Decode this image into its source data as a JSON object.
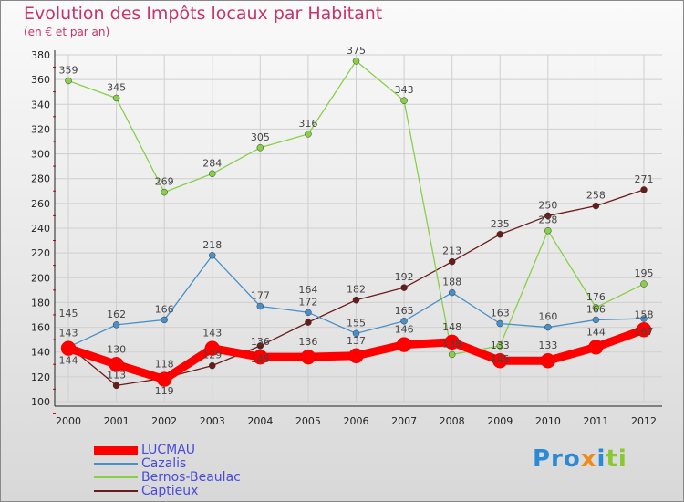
{
  "chart_data": {
    "type": "line",
    "title": "Evolution des Impôts locaux par Habitant",
    "subtitle": "(en € et par an)",
    "x": [
      "2000",
      "2001",
      "2002",
      "2003",
      "2004",
      "2005",
      "2006",
      "2007",
      "2008",
      "2009",
      "2010",
      "2011",
      "2012"
    ],
    "yticks": [
      100,
      120,
      140,
      160,
      180,
      200,
      220,
      240,
      260,
      280,
      300,
      320,
      340,
      360,
      380
    ],
    "ylim": [
      100,
      380
    ],
    "grid": true,
    "legend_position": "bottom-left",
    "series": [
      {
        "name": "LUCMAU",
        "color": "#ff0000",
        "values": [
          143,
          130,
          118,
          143,
          136,
          136,
          137,
          146,
          148,
          133,
          133,
          144,
          158
        ]
      },
      {
        "name": "Cazalis",
        "color": "#4a90c8",
        "values": [
          144,
          162,
          166,
          218,
          177,
          172,
          155,
          165,
          188,
          163,
          160,
          166,
          167
        ]
      },
      {
        "name": "Bernos-Beaulac",
        "color": "#88d048",
        "values": [
          359,
          345,
          269,
          284,
          305,
          316,
          375,
          343,
          138,
          145,
          238,
          176,
          195
        ]
      },
      {
        "name": "Captieux",
        "color": "#6b1a1a",
        "values": [
          145,
          113,
          119,
          129,
          145,
          164,
          182,
          192,
          213,
          235,
          250,
          258,
          271
        ]
      }
    ]
  },
  "logo": "Proxiti"
}
